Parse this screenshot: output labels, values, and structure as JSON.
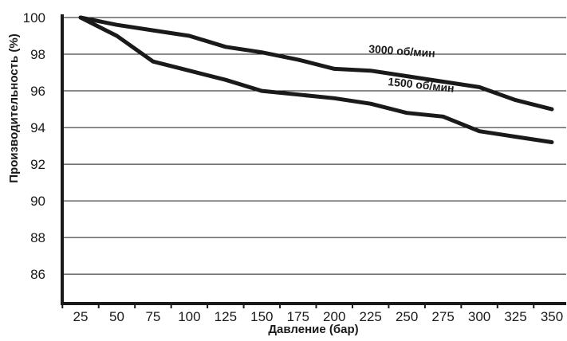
{
  "chart_data": {
    "type": "line",
    "xlabel": "Давление (бар)",
    "ylabel": "Производительность (%)",
    "x": [
      25,
      50,
      75,
      100,
      125,
      150,
      175,
      200,
      225,
      250,
      275,
      300,
      325,
      350
    ],
    "x_ticks": [
      "25",
      "50",
      "75",
      "100",
      "125",
      "150",
      "175",
      "200",
      "225",
      "250",
      "275",
      "300",
      "325",
      "350"
    ],
    "y_ticks": [
      "86",
      "88",
      "90",
      "92",
      "94",
      "96",
      "98",
      "100"
    ],
    "ylim": [
      84.4,
      100
    ],
    "grid": "horizontal",
    "series": [
      {
        "name": "3000 об/мин",
        "color": "#1a1a1a",
        "values": [
          100,
          99.6,
          99.3,
          99.0,
          98.4,
          98.1,
          97.7,
          97.2,
          97.1,
          96.8,
          96.5,
          96.2,
          95.5,
          95.0
        ]
      },
      {
        "name": "1500 об/мин",
        "color": "#1a1a1a",
        "values": [
          100,
          99.0,
          97.6,
          97.1,
          96.6,
          96.0,
          95.8,
          95.6,
          95.3,
          94.8,
          94.6,
          93.8,
          93.5,
          93.2
        ]
      }
    ]
  }
}
